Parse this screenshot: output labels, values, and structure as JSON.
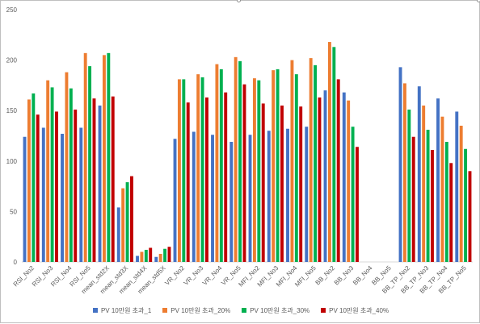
{
  "chart_data": {
    "type": "bar",
    "title": "",
    "xlabel": "",
    "ylabel": "",
    "ylim": [
      0,
      250
    ],
    "yticks": [
      0,
      50,
      100,
      150,
      200,
      250
    ],
    "grid": false,
    "legend_position": "bottom",
    "categories": [
      "RSI_No2",
      "RSI_No3",
      "RSI_No4",
      "RSI_No5",
      "mean_std2X",
      "mean_std3X",
      "mean_std4X",
      "mean_std5X",
      "VR_No2",
      "VR_No3",
      "VR_No4",
      "VR_No5",
      "MFI_No2",
      "MFI_No3",
      "MFI_No4",
      "MFI_No5",
      "BB_No2",
      "BB_No3",
      "BB_No4",
      "BB_No5",
      "BB_TP_No2",
      "BB_TP_No3",
      "BB_TP_No4",
      "BB_TP_No5"
    ],
    "series": [
      {
        "name": "PV 10만원 초과_1",
        "color": "#4472c4",
        "values": [
          124,
          133,
          127,
          133,
          155,
          54,
          6,
          5,
          122,
          129,
          126,
          119,
          126,
          130,
          132,
          134,
          170,
          168,
          0,
          0,
          193,
          174,
          162,
          149
        ]
      },
      {
        "name": "PV 10만원 초과_20%",
        "color": "#ed7d31",
        "values": [
          161,
          180,
          188,
          207,
          205,
          73,
          10,
          8,
          181,
          186,
          196,
          203,
          182,
          190,
          200,
          202,
          218,
          160,
          0,
          0,
          177,
          155,
          144,
          135
        ]
      },
      {
        "name": "PV 10만원 초과_30%",
        "color": "#00b050",
        "values": [
          167,
          173,
          172,
          194,
          207,
          79,
          12,
          13,
          181,
          183,
          191,
          199,
          180,
          191,
          186,
          195,
          213,
          134,
          0,
          0,
          151,
          131,
          119,
          112
        ]
      },
      {
        "name": "PV 10만원 초과_40%",
        "color": "#c00000",
        "values": [
          146,
          149,
          151,
          162,
          164,
          85,
          14,
          15,
          158,
          163,
          168,
          176,
          157,
          155,
          154,
          163,
          181,
          114,
          0,
          0,
          124,
          111,
          98,
          90
        ]
      }
    ]
  }
}
